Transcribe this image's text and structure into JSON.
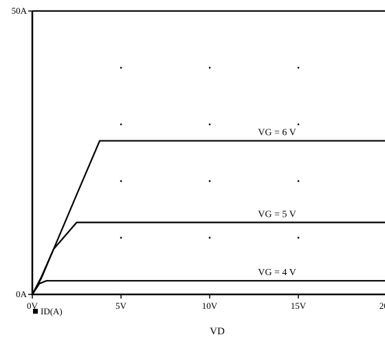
{
  "chart_data": {
    "type": "line",
    "title": "",
    "xlabel": "VD",
    "ylabel": "",
    "xlim": [
      0,
      20
    ],
    "ylim": [
      0,
      50
    ],
    "x_ticks": [
      0,
      5,
      10,
      15,
      20
    ],
    "x_tick_labels": [
      "0V",
      "5V",
      "10V",
      "15V",
      "20V"
    ],
    "y_ticks": [
      0,
      50
    ],
    "y_tick_labels": [
      "0A",
      "50A"
    ],
    "grid": "dotted",
    "legend": {
      "position": "bottom-left",
      "entries": [
        "ID(A)"
      ]
    },
    "series": [
      {
        "label": "VG = 6 V",
        "points": [
          [
            0,
            0
          ],
          [
            0.5,
            2.8
          ],
          [
            1.5,
            10.2
          ],
          [
            2.5,
            17.6
          ],
          [
            3.8,
            27.1
          ],
          [
            20,
            27.1
          ]
        ]
      },
      {
        "label": "VG = 5 V",
        "points": [
          [
            0,
            0
          ],
          [
            0.5,
            3.0
          ],
          [
            1.2,
            8.0
          ],
          [
            2.5,
            12.7
          ],
          [
            20,
            12.7
          ]
        ]
      },
      {
        "label": "VG = 4 V",
        "points": [
          [
            0,
            0
          ],
          [
            0.4,
            1.9
          ],
          [
            0.8,
            2.4
          ],
          [
            20,
            2.4
          ]
        ]
      }
    ],
    "color": "#000000"
  }
}
